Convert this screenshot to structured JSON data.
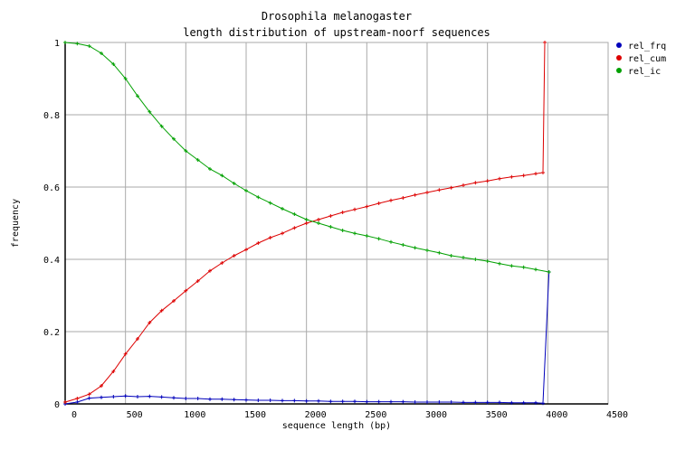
{
  "chart_data": {
    "type": "line",
    "title": "Drosophila melanogaster",
    "subtitle": "length distribution of upstream-noorf sequences",
    "xlabel": "sequence length (bp)",
    "ylabel": "frequency",
    "xlim": [
      0,
      4500
    ],
    "ylim": [
      0,
      1
    ],
    "xticks": [
      0,
      500,
      1000,
      1500,
      2000,
      2500,
      3000,
      3500,
      4000,
      4500
    ],
    "yticks": [
      0,
      0.2,
      0.4,
      0.6,
      0.8,
      1
    ],
    "ytick_labels": [
      "0",
      "0.2",
      "0.4",
      "0.6",
      "0.8",
      "1"
    ],
    "grid": true,
    "legend_position": "right",
    "series": [
      {
        "name": "rel_frq",
        "color": "#0000bb",
        "x": [
          0,
          100,
          200,
          300,
          400,
          500,
          600,
          700,
          800,
          900,
          1000,
          1100,
          1200,
          1300,
          1400,
          1500,
          1600,
          1700,
          1800,
          1900,
          2000,
          2100,
          2200,
          2300,
          2400,
          2500,
          2600,
          2700,
          2800,
          2900,
          3000,
          3100,
          3200,
          3300,
          3400,
          3500,
          3600,
          3700,
          3800,
          3900,
          3960,
          4010
        ],
        "y": [
          0,
          0.005,
          0.016,
          0.018,
          0.02,
          0.022,
          0.02,
          0.021,
          0.019,
          0.017,
          0.015,
          0.015,
          0.013,
          0.013,
          0.012,
          0.011,
          0.01,
          0.01,
          0.009,
          0.009,
          0.008,
          0.008,
          0.007,
          0.007,
          0.007,
          0.006,
          0.006,
          0.006,
          0.006,
          0.005,
          0.005,
          0.005,
          0.005,
          0.004,
          0.004,
          0.004,
          0.004,
          0.003,
          0.003,
          0.003,
          0.002,
          0.365
        ]
      },
      {
        "name": "rel_cum",
        "color": "#dd0000",
        "x": [
          0,
          100,
          200,
          300,
          400,
          500,
          600,
          700,
          800,
          900,
          1000,
          1100,
          1200,
          1300,
          1400,
          1500,
          1600,
          1700,
          1800,
          1900,
          2000,
          2100,
          2200,
          2300,
          2400,
          2500,
          2600,
          2700,
          2800,
          2900,
          3000,
          3100,
          3200,
          3300,
          3400,
          3500,
          3600,
          3700,
          3800,
          3900,
          3960,
          3975
        ],
        "y": [
          0.005,
          0.015,
          0.027,
          0.05,
          0.09,
          0.138,
          0.18,
          0.225,
          0.258,
          0.285,
          0.313,
          0.34,
          0.368,
          0.39,
          0.41,
          0.427,
          0.445,
          0.46,
          0.472,
          0.487,
          0.5,
          0.51,
          0.52,
          0.53,
          0.538,
          0.546,
          0.555,
          0.563,
          0.57,
          0.578,
          0.585,
          0.592,
          0.598,
          0.605,
          0.612,
          0.617,
          0.623,
          0.628,
          0.632,
          0.637,
          0.64,
          1.0
        ]
      },
      {
        "name": "rel_ic",
        "color": "#00a000",
        "x": [
          0,
          100,
          200,
          300,
          400,
          500,
          600,
          700,
          800,
          900,
          1000,
          1100,
          1200,
          1300,
          1400,
          1500,
          1600,
          1700,
          1800,
          1900,
          2000,
          2100,
          2200,
          2300,
          2400,
          2500,
          2600,
          2700,
          2800,
          2900,
          3000,
          3100,
          3200,
          3300,
          3400,
          3500,
          3600,
          3700,
          3800,
          3900,
          4010
        ],
        "y": [
          1,
          0.997,
          0.99,
          0.97,
          0.94,
          0.9,
          0.852,
          0.808,
          0.768,
          0.733,
          0.7,
          0.675,
          0.65,
          0.632,
          0.61,
          0.59,
          0.572,
          0.556,
          0.54,
          0.525,
          0.51,
          0.5,
          0.49,
          0.48,
          0.472,
          0.465,
          0.457,
          0.448,
          0.44,
          0.432,
          0.425,
          0.418,
          0.41,
          0.405,
          0.4,
          0.395,
          0.388,
          0.382,
          0.378,
          0.372,
          0.365
        ]
      }
    ]
  }
}
